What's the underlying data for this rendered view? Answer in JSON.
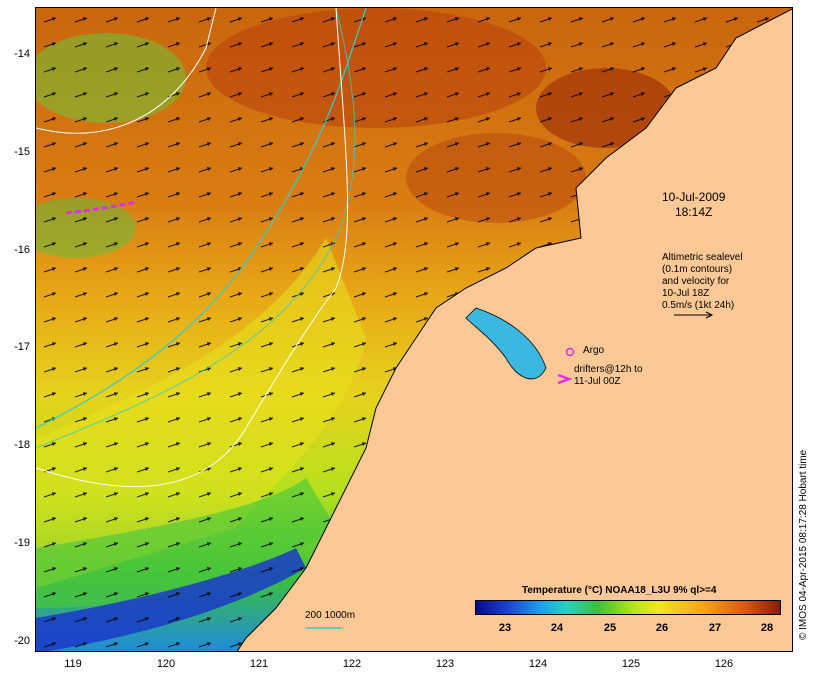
{
  "axes": {
    "y_ticks": [
      "-14",
      "-15",
      "-16",
      "-17",
      "-18",
      "-19",
      "-20"
    ],
    "x_ticks": [
      "119",
      "120",
      "121",
      "122",
      "123",
      "124",
      "125",
      "126"
    ]
  },
  "annotations": {
    "date_line1": "10-Jul-2009",
    "date_line2": "18:14Z",
    "altimetry_lines": [
      "Altimetric sealevel",
      "(0.1m contours)",
      "and velocity for",
      "10-Jul 18Z",
      "0.5m/s (1kt 24h)"
    ],
    "argo": "Argo",
    "drifters_line1": "drifters@12h to",
    "drifters_line2": "11-Jul 00Z",
    "depth_scale": "200  1000m"
  },
  "colorbar": {
    "title": "Temperature (°C) NOAA18_L3U 9% ql>=4",
    "ticks": [
      "23",
      "24",
      "25",
      "26",
      "27",
      "28"
    ],
    "range": [
      22.4,
      28.2
    ]
  },
  "credit": "© IMOS 04-Apr-2015 08:17:28 Hobart time",
  "colors": {
    "land": "#fcc896",
    "contour_cyan": "#33cccc",
    "drifter_magenta": "#e030e0",
    "sst_warm": "#d0680e",
    "sst_hot": "#a8300a",
    "sst_mid": "#f0d01a",
    "sst_cool": "#3cc03a",
    "sst_cold": "#1230c0"
  }
}
